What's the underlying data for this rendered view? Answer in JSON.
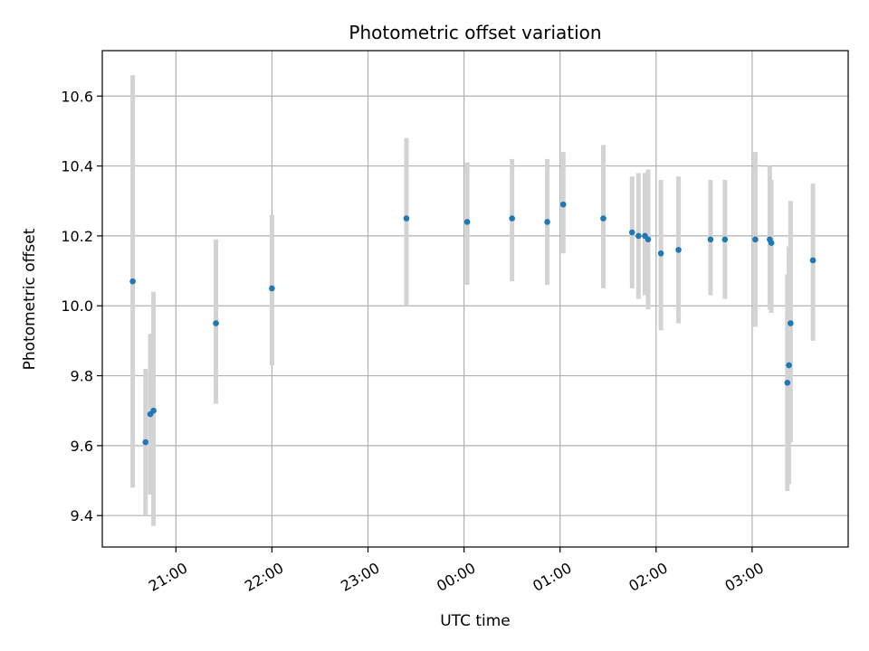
{
  "chart_data": {
    "type": "scatter",
    "title": "Photometric offset variation",
    "xlabel": "UTC time",
    "ylabel": "Photometric offset",
    "x_ticks": [
      {
        "value": "21:00",
        "label": "21:00"
      },
      {
        "value": "22:00",
        "label": "22:00"
      },
      {
        "value": "23:00",
        "label": "23:00"
      },
      {
        "value": "00:00",
        "label": "00:00"
      },
      {
        "value": "01:00",
        "label": "01:00"
      },
      {
        "value": "02:00",
        "label": "02:00"
      },
      {
        "value": "03:00",
        "label": "03:00"
      }
    ],
    "y_ticks": [
      9.4,
      9.6,
      9.8,
      10.0,
      10.2,
      10.4,
      10.6
    ],
    "xlim": [
      "20:14",
      "04:00"
    ],
    "ylim": [
      9.31,
      10.73
    ],
    "grid": true,
    "colors": {
      "point": "#1f77b4",
      "errorbar": "#d3d3d3",
      "grid": "#b0b0b0"
    },
    "points": [
      {
        "x": "20:33",
        "y": 10.07,
        "ylow": 9.48,
        "yhigh": 10.66
      },
      {
        "x": "20:41",
        "y": 9.61,
        "ylow": 9.4,
        "yhigh": 9.82
      },
      {
        "x": "20:44",
        "y": 9.69,
        "ylow": 9.46,
        "yhigh": 9.92
      },
      {
        "x": "20:46",
        "y": 9.7,
        "ylow": 9.37,
        "yhigh": 10.04
      },
      {
        "x": "21:25",
        "y": 9.95,
        "ylow": 9.72,
        "yhigh": 10.19
      },
      {
        "x": "22:00",
        "y": 10.05,
        "ylow": 9.83,
        "yhigh": 10.26
      },
      {
        "x": "23:24",
        "y": 10.25,
        "ylow": 10.0,
        "yhigh": 10.48
      },
      {
        "x": "00:02",
        "y": 10.24,
        "ylow": 10.06,
        "yhigh": 10.41
      },
      {
        "x": "00:30",
        "y": 10.25,
        "ylow": 10.07,
        "yhigh": 10.42
      },
      {
        "x": "00:52",
        "y": 10.24,
        "ylow": 10.06,
        "yhigh": 10.42
      },
      {
        "x": "01:02",
        "y": 10.29,
        "ylow": 10.15,
        "yhigh": 10.44
      },
      {
        "x": "01:27",
        "y": 10.25,
        "ylow": 10.05,
        "yhigh": 10.46
      },
      {
        "x": "01:45",
        "y": 10.21,
        "ylow": 10.05,
        "yhigh": 10.37
      },
      {
        "x": "01:49",
        "y": 10.2,
        "ylow": 10.02,
        "yhigh": 10.38
      },
      {
        "x": "01:53",
        "y": 10.2,
        "ylow": 10.03,
        "yhigh": 10.38
      },
      {
        "x": "01:55",
        "y": 10.19,
        "ylow": 9.99,
        "yhigh": 10.39
      },
      {
        "x": "02:03",
        "y": 10.15,
        "ylow": 9.93,
        "yhigh": 10.36
      },
      {
        "x": "02:14",
        "y": 10.16,
        "ylow": 9.95,
        "yhigh": 10.37
      },
      {
        "x": "02:34",
        "y": 10.19,
        "ylow": 10.03,
        "yhigh": 10.36
      },
      {
        "x": "02:43",
        "y": 10.19,
        "ylow": 10.02,
        "yhigh": 10.36
      },
      {
        "x": "03:02",
        "y": 10.19,
        "ylow": 9.94,
        "yhigh": 10.44
      },
      {
        "x": "03:11",
        "y": 10.19,
        "ylow": 9.99,
        "yhigh": 10.4
      },
      {
        "x": "03:12",
        "y": 10.18,
        "ylow": 9.98,
        "yhigh": 10.36
      },
      {
        "x": "03:22",
        "y": 9.78,
        "ylow": 9.47,
        "yhigh": 10.09
      },
      {
        "x": "03:23",
        "y": 9.83,
        "ylow": 9.49,
        "yhigh": 10.17
      },
      {
        "x": "03:24",
        "y": 9.95,
        "ylow": 9.61,
        "yhigh": 10.3
      },
      {
        "x": "03:38",
        "y": 10.13,
        "ylow": 9.9,
        "yhigh": 10.35
      }
    ]
  }
}
